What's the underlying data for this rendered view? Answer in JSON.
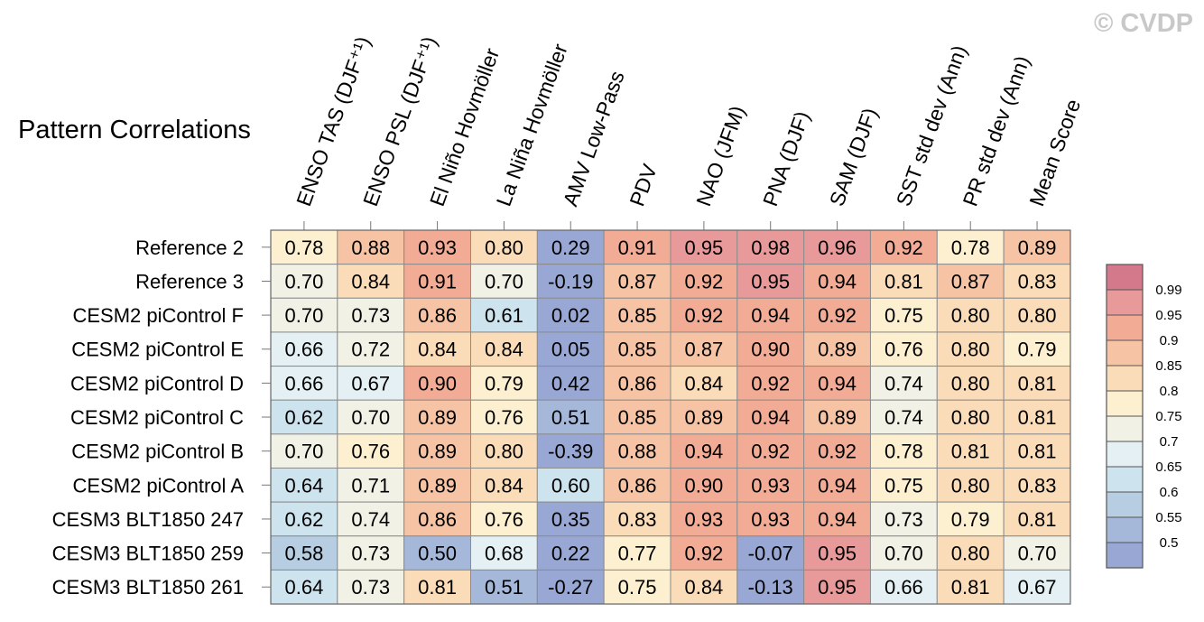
{
  "chart_data": {
    "type": "heatmap",
    "title": "Pattern Correlations",
    "watermark": "© CVDP",
    "columns": [
      "ENSO TAS (DJF⁺¹)",
      "ENSO PSL (DJF⁺¹)",
      "El Niño Hovmöller",
      "La Niña Hovmöller",
      "AMV Low-Pass",
      "PDV",
      "NAO (JFM)",
      "PNA (DJF)",
      "SAM (DJF)",
      "SST std dev (Ann)",
      "PR std dev (Ann)",
      "Mean Score"
    ],
    "rows": [
      "Reference 2",
      "Reference 3",
      "CESM2 piControl F",
      "CESM2 piControl E",
      "CESM2 piControl D",
      "CESM2 piControl C",
      "CESM2 piControl B",
      "CESM2 piControl A",
      "CESM3 BLT1850 247",
      "CESM3 BLT1850 259",
      "CESM3 BLT1850 261"
    ],
    "values": [
      [
        "0.78",
        "0.88",
        "0.93",
        "0.80",
        "0.29",
        "0.91",
        "0.95",
        "0.98",
        "0.96",
        "0.92",
        "0.78",
        "0.89"
      ],
      [
        "0.70",
        "0.84",
        "0.91",
        "0.70",
        "-0.19",
        "0.87",
        "0.92",
        "0.95",
        "0.94",
        "0.81",
        "0.87",
        "0.83"
      ],
      [
        "0.70",
        "0.73",
        "0.86",
        "0.61",
        "0.02",
        "0.85",
        "0.92",
        "0.94",
        "0.92",
        "0.75",
        "0.80",
        "0.80"
      ],
      [
        "0.66",
        "0.72",
        "0.84",
        "0.84",
        "0.05",
        "0.85",
        "0.87",
        "0.90",
        "0.89",
        "0.76",
        "0.80",
        "0.79"
      ],
      [
        "0.66",
        "0.67",
        "0.90",
        "0.79",
        "0.42",
        "0.86",
        "0.84",
        "0.92",
        "0.94",
        "0.74",
        "0.80",
        "0.81"
      ],
      [
        "0.62",
        "0.70",
        "0.89",
        "0.76",
        "0.51",
        "0.85",
        "0.89",
        "0.94",
        "0.89",
        "0.74",
        "0.80",
        "0.81"
      ],
      [
        "0.70",
        "0.76",
        "0.89",
        "0.80",
        "-0.39",
        "0.88",
        "0.94",
        "0.92",
        "0.92",
        "0.78",
        "0.81",
        "0.81"
      ],
      [
        "0.64",
        "0.71",
        "0.89",
        "0.84",
        "0.60",
        "0.86",
        "0.90",
        "0.93",
        "0.94",
        "0.75",
        "0.80",
        "0.83"
      ],
      [
        "0.62",
        "0.74",
        "0.86",
        "0.76",
        "0.35",
        "0.83",
        "0.93",
        "0.93",
        "0.94",
        "0.73",
        "0.79",
        "0.81"
      ],
      [
        "0.58",
        "0.73",
        "0.50",
        "0.68",
        "0.22",
        "0.77",
        "0.92",
        "-0.07",
        "0.95",
        "0.70",
        "0.80",
        "0.70"
      ],
      [
        "0.64",
        "0.73",
        "0.81",
        "0.51",
        "-0.27",
        "0.75",
        "0.84",
        "-0.13",
        "0.95",
        "0.66",
        "0.81",
        "0.67"
      ]
    ],
    "colorbar": {
      "ticks": [
        "0.99",
        "0.95",
        "0.9",
        "0.85",
        "0.8",
        "0.75",
        "0.7",
        "0.65",
        "0.6",
        "0.55",
        "0.5"
      ],
      "colors": [
        "#d4788c",
        "#e89a9a",
        "#f2ac96",
        "#f6c4a4",
        "#fbdcb8",
        "#fdf0d0",
        "#f1f1e5",
        "#e4f0f3",
        "#cde3ee",
        "#b6cde2",
        "#a5b8da",
        "#98a7d3"
      ]
    }
  }
}
